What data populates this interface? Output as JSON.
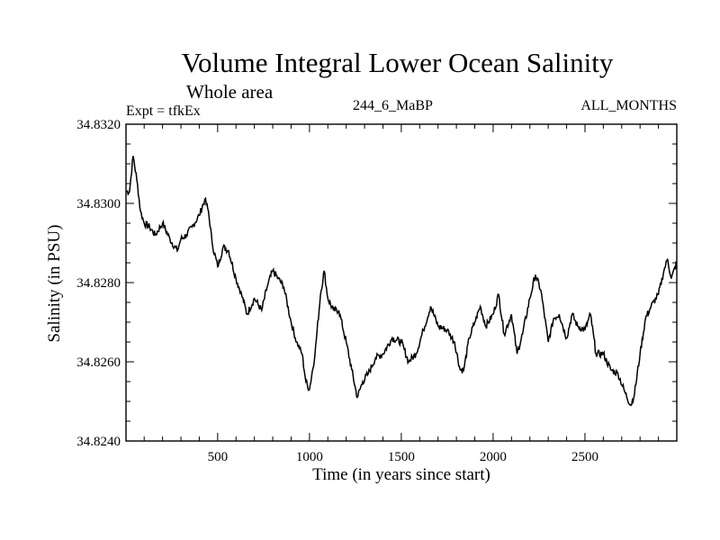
{
  "header": {
    "title": "Volume Integral Lower Ocean Salinity",
    "subtitle": "Whole area",
    "experiment": "Expt = tfkEx",
    "run": "244_6_MaBP",
    "months": "ALL_MONTHS"
  },
  "chart_data": {
    "type": "line",
    "title": "Volume Integral Lower Ocean Salinity",
    "subtitle": "Whole area",
    "xlabel": "Time (in years since start)",
    "ylabel": "Salinity (in PSU)",
    "xlim": [
      1,
      3000
    ],
    "ylim": [
      34.824,
      34.832
    ],
    "xticks": [
      500,
      1000,
      1500,
      2000,
      2500
    ],
    "yticks": [
      "34.8240",
      "34.8260",
      "34.8280",
      "34.8300",
      "34.8320"
    ],
    "grid": false,
    "color": "#000000",
    "series": [
      {
        "x": [
          1,
          20,
          40,
          60,
          80,
          100,
          130,
          160,
          200,
          240,
          280,
          300,
          330,
          360,
          400,
          430,
          450,
          470,
          500,
          530,
          560,
          600,
          630,
          660,
          700,
          740,
          770,
          800,
          830,
          860,
          900,
          930,
          960,
          980,
          1000,
          1030,
          1060,
          1080,
          1100,
          1130,
          1160,
          1200,
          1230,
          1260,
          1290,
          1320,
          1360,
          1400,
          1450,
          1500,
          1540,
          1580,
          1620,
          1660,
          1700,
          1750,
          1790,
          1820,
          1840,
          1870,
          1900,
          1930,
          1960,
          2000,
          2030,
          2060,
          2100,
          2130,
          2160,
          2200,
          2230,
          2260,
          2300,
          2330,
          2360,
          2400,
          2430,
          2460,
          2500,
          2530,
          2560,
          2600,
          2640,
          2680,
          2720,
          2750,
          2770,
          2800,
          2830,
          2860,
          2900,
          2930,
          2950,
          2970,
          3000
        ],
        "y": [
          34.8303,
          34.8303,
          34.8312,
          34.8306,
          34.8298,
          34.8295,
          34.8294,
          34.8292,
          34.8295,
          34.8291,
          34.8288,
          34.8291,
          34.8292,
          34.8294,
          34.8297,
          34.8301,
          34.8298,
          34.829,
          34.8284,
          34.8289,
          34.8288,
          34.8281,
          34.8277,
          34.8272,
          34.8276,
          34.8273,
          34.8279,
          34.8283,
          34.8281,
          34.8279,
          34.827,
          34.8265,
          34.8262,
          34.8255,
          34.8253,
          34.8262,
          34.8277,
          34.8283,
          34.8276,
          34.8273,
          34.8273,
          34.8265,
          34.8258,
          34.8251,
          34.8255,
          34.8257,
          34.8261,
          34.8262,
          34.8266,
          34.8265,
          34.826,
          34.8262,
          34.8268,
          34.8274,
          34.8269,
          34.8268,
          34.8265,
          34.8258,
          34.8258,
          34.8266,
          34.827,
          34.8274,
          34.8269,
          34.8272,
          34.8277,
          34.8267,
          34.8272,
          34.8262,
          34.8267,
          34.8276,
          34.8282,
          34.8278,
          34.8265,
          34.8271,
          34.8272,
          34.8266,
          34.8272,
          34.8269,
          34.8268,
          34.8272,
          34.8262,
          34.8262,
          34.8258,
          34.8257,
          34.8252,
          34.8249,
          34.8252,
          34.8262,
          34.8271,
          34.8274,
          34.8277,
          34.8283,
          34.8286,
          34.8281,
          34.8285
        ]
      }
    ]
  }
}
